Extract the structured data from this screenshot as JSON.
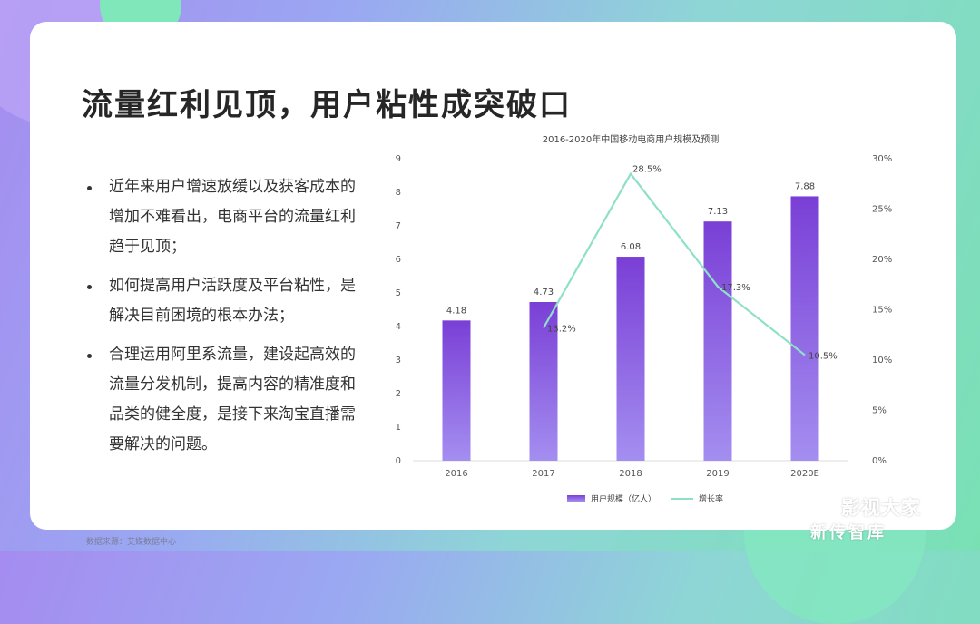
{
  "slide": {
    "title": "流量红利见顶，用户粘性成突破口",
    "bullets": [
      "近年来用户增速放缓以及获客成本的增加不难看出，电商平台的流量红利趋于见顶；",
      "如何提高用户活跃度及平台粘性，是解决目前困境的根本办法；",
      "合理运用阿里系流量，建设起高效的流量分发机制，提高内容的精准度和品类的健全度，是接下来淘宝直播需要解决的问题。"
    ],
    "source": "数据来源：艾媒数据中心"
  },
  "brand": {
    "line1": "影视大家",
    "line2": "新传智库",
    "icon": "wechat-icon"
  },
  "colors": {
    "bar_top": "#7a3fd6",
    "bar_bottom": "#a48ef0",
    "line": "#8fe0c8",
    "axis_text": "#555555"
  },
  "chart_data": {
    "type": "bar",
    "title": "2016-2020年中国移动电商用户规模及预测",
    "categories": [
      "2016",
      "2017",
      "2018",
      "2019",
      "2020E"
    ],
    "series": [
      {
        "name": "用户规模（亿人）",
        "type": "bar",
        "axis": "left",
        "values": [
          4.18,
          4.73,
          6.08,
          7.13,
          7.88
        ],
        "labels": [
          "4.18",
          "4.73",
          "6.08",
          "7.13",
          "7.88"
        ]
      },
      {
        "name": "增长率",
        "type": "line",
        "axis": "right",
        "points": [
          {
            "category": "2017",
            "value": 13.2,
            "label": "13.2%"
          },
          {
            "category": "2018",
            "value": 28.5,
            "label": "28.5%"
          },
          {
            "category": "2019",
            "value": 17.3,
            "label": "17.3%"
          },
          {
            "category": "2020E",
            "value": 10.5,
            "label": "10.5%"
          }
        ]
      }
    ],
    "y_left": {
      "min": 0,
      "max": 9,
      "ticks": [
        "0",
        "1",
        "2",
        "3",
        "4",
        "5",
        "6",
        "7",
        "8",
        "9"
      ]
    },
    "y_right": {
      "min": 0,
      "max": 30,
      "ticks": [
        "0%",
        "5%",
        "10%",
        "15%",
        "20%",
        "25%",
        "30%"
      ]
    },
    "grid": false,
    "legend": "bottom"
  }
}
